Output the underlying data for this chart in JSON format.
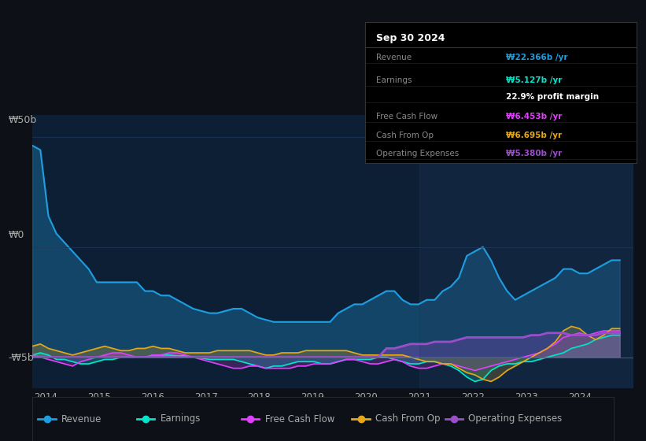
{
  "bg_color": "#0d1117",
  "plot_bg_color": "#0d1f35",
  "grid_color": "#1e3a5f",
  "text_color": "#aaaaaa",
  "title_color": "#ffffff",
  "ylabel_50": "₩50b",
  "ylabel_0": "₩0",
  "ylabel_neg5": "-₩5b",
  "x_ticks": [
    2014,
    2015,
    2016,
    2017,
    2018,
    2019,
    2020,
    2021,
    2022,
    2023,
    2024
  ],
  "ylim": [
    -7,
    55
  ],
  "legend_entries": [
    "Revenue",
    "Earnings",
    "Free Cash Flow",
    "Cash From Op",
    "Operating Expenses"
  ],
  "legend_colors": [
    "#1e9de0",
    "#00e5cc",
    "#e040fb",
    "#e6a817",
    "#9c4dcc"
  ],
  "series_colors": {
    "revenue": "#1e9de0",
    "earnings": "#00e5cc",
    "free_cash_flow": "#e040fb",
    "cash_from_op": "#e6a817",
    "operating_expenses": "#9c4dcc"
  },
  "tooltip": {
    "date": "Sep 30 2024",
    "revenue": "₩22.366b",
    "earnings": "₩5.127b",
    "profit_margin": "22.9%",
    "free_cash_flow": "₩6.453b",
    "cash_from_op": "₩6.695b",
    "operating_expenses": "₩5.380b"
  },
  "revenue_color_value": "#1e9de0",
  "earnings_color_value": "#00e5cc",
  "fcf_color_value": "#e040fb",
  "cashop_color_value": "#e6a817",
  "opex_color_value": "#9c4dcc",
  "revenue": [
    48,
    47,
    32,
    28,
    26,
    24,
    22,
    20,
    17,
    17,
    17,
    17,
    17,
    17,
    15,
    15,
    14,
    14,
    13,
    12,
    11,
    10.5,
    10,
    10,
    10.5,
    11,
    11,
    10,
    9,
    8.5,
    8,
    8,
    8,
    8,
    8,
    8,
    8,
    8,
    10,
    11,
    12,
    12,
    13,
    14,
    15,
    15,
    13,
    12,
    12,
    13,
    13,
    15,
    16,
    18,
    23,
    24,
    25,
    22,
    18,
    15,
    13,
    14,
    15,
    16,
    17,
    18,
    20,
    20,
    19,
    19,
    20,
    21,
    22,
    22
  ],
  "earnings": [
    0.5,
    1.0,
    0.5,
    -0.5,
    -0.5,
    -1.0,
    -1.5,
    -1.5,
    -1.0,
    -0.5,
    -0.5,
    0.0,
    0.0,
    0.0,
    0.0,
    0.5,
    0.5,
    0.5,
    0.3,
    0.3,
    0.0,
    -0.2,
    -0.5,
    -0.5,
    -0.5,
    -0.5,
    -1.0,
    -1.5,
    -2.0,
    -2.5,
    -2.0,
    -2.0,
    -1.5,
    -1.0,
    -1.0,
    -1.0,
    -1.5,
    -1.5,
    -1.0,
    -0.5,
    -0.5,
    -0.5,
    -0.5,
    0.0,
    0.0,
    -0.5,
    -1.0,
    -1.5,
    -1.5,
    -1.0,
    -1.0,
    -1.5,
    -2.0,
    -3.0,
    -4.5,
    -5.5,
    -5.0,
    -3.0,
    -2.0,
    -1.5,
    -1.5,
    -1.0,
    -1.0,
    -0.5,
    0.0,
    0.5,
    1.0,
    2.0,
    2.5,
    3.0,
    4.0,
    4.5,
    5.0,
    5.0
  ],
  "free_cash_flow": [
    0.5,
    0.0,
    -0.5,
    -1.0,
    -1.5,
    -2.0,
    -1.0,
    -0.5,
    0.0,
    0.5,
    1.0,
    1.0,
    0.5,
    0.0,
    0.0,
    0.5,
    0.5,
    1.0,
    1.0,
    0.5,
    0.0,
    -0.5,
    -1.0,
    -1.5,
    -2.0,
    -2.5,
    -2.5,
    -2.0,
    -2.0,
    -2.5,
    -2.5,
    -2.5,
    -2.5,
    -2.0,
    -2.0,
    -1.5,
    -1.5,
    -1.5,
    -1.0,
    -0.5,
    -0.5,
    -1.0,
    -1.5,
    -1.5,
    -1.0,
    -0.5,
    -1.0,
    -2.0,
    -2.5,
    -2.5,
    -2.0,
    -1.5,
    -1.5,
    -2.0,
    -2.5,
    -3.0,
    -2.5,
    -2.0,
    -1.5,
    -1.0,
    -0.5,
    0.0,
    0.5,
    1.0,
    2.0,
    3.0,
    4.5,
    5.0,
    5.5,
    5.0,
    5.5,
    6.0,
    6.0,
    6.0
  ],
  "cash_from_op": [
    2.5,
    3.0,
    2.0,
    1.5,
    1.0,
    0.5,
    1.0,
    1.5,
    2.0,
    2.5,
    2.0,
    1.5,
    1.5,
    2.0,
    2.0,
    2.5,
    2.0,
    2.0,
    1.5,
    1.0,
    1.0,
    1.0,
    1.0,
    1.5,
    1.5,
    1.5,
    1.5,
    1.5,
    1.0,
    0.5,
    0.5,
    1.0,
    1.0,
    1.0,
    1.5,
    1.5,
    1.5,
    1.5,
    1.5,
    1.5,
    1.0,
    0.5,
    0.5,
    0.5,
    0.5,
    0.5,
    0.5,
    0.0,
    -0.5,
    -1.0,
    -1.0,
    -1.5,
    -1.5,
    -2.5,
    -3.5,
    -4.0,
    -5.0,
    -5.5,
    -4.5,
    -3.0,
    -2.0,
    -1.0,
    0.0,
    1.0,
    2.0,
    3.5,
    6.0,
    7.0,
    6.5,
    5.0,
    4.0,
    5.0,
    6.5,
    6.5
  ],
  "operating_expenses": [
    0.0,
    0.0,
    0.0,
    0.0,
    0.0,
    0.0,
    0.0,
    0.0,
    0.0,
    0.0,
    0.0,
    0.0,
    0.0,
    0.0,
    0.0,
    0.0,
    0.0,
    0.0,
    0.0,
    0.0,
    0.0,
    0.0,
    0.0,
    0.0,
    0.0,
    0.0,
    0.0,
    0.0,
    0.0,
    0.0,
    0.0,
    0.0,
    0.0,
    0.0,
    0.0,
    0.0,
    0.0,
    0.0,
    0.0,
    0.0,
    0.0,
    0.0,
    0.0,
    0.0,
    2.0,
    2.0,
    2.5,
    3.0,
    3.0,
    3.0,
    3.5,
    3.5,
    3.5,
    4.0,
    4.5,
    4.5,
    4.5,
    4.5,
    4.5,
    4.5,
    4.5,
    4.5,
    5.0,
    5.0,
    5.5,
    5.5,
    5.5,
    5.0,
    5.0,
    5.0,
    5.0,
    5.5,
    5.5,
    5.5
  ]
}
